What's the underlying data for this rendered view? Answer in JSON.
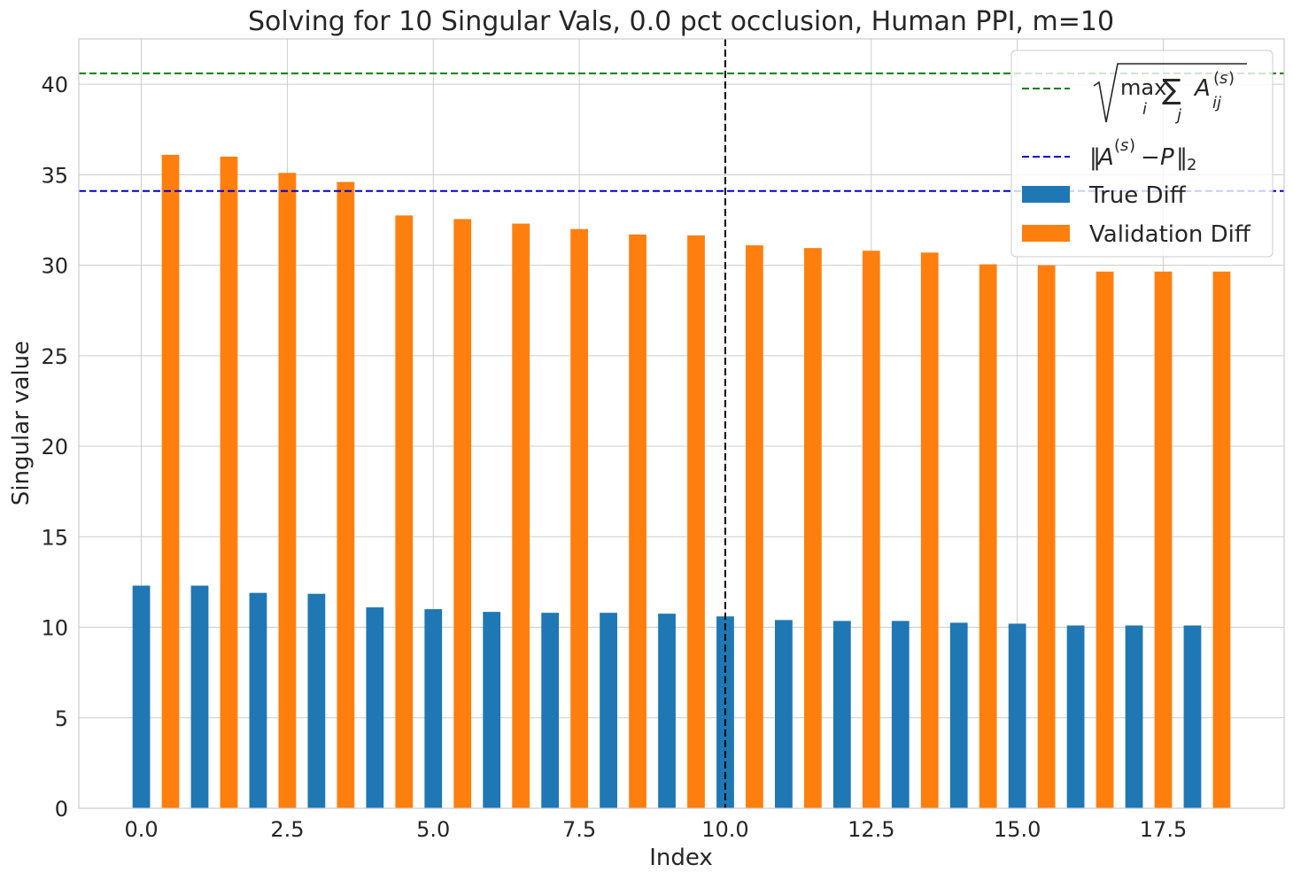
{
  "chart_data": {
    "type": "bar",
    "title": "Solving for 10 Singular Vals, 0.0 pct occlusion, Human PPI, m=10",
    "xlabel": "Index",
    "ylabel": "Singular value",
    "xlim": [
      -1.07,
      19.57
    ],
    "ylim": [
      0,
      42.5
    ],
    "xticks": [
      0,
      2.5,
      5,
      7.5,
      10,
      12.5,
      15,
      17.5
    ],
    "xtick_labels": [
      "0.0",
      "2.5",
      "5.0",
      "7.5",
      "10.0",
      "12.5",
      "15.0",
      "17.5"
    ],
    "yticks": [
      0,
      5,
      10,
      15,
      20,
      25,
      30,
      35,
      40
    ],
    "ytick_labels": [
      "0",
      "5",
      "10",
      "15",
      "20",
      "25",
      "30",
      "35",
      "40"
    ],
    "grid": true,
    "bar_width": 0.3,
    "series": [
      {
        "name": "True Diff",
        "color": "#1f77b4",
        "x": [
          0,
          1,
          2,
          3,
          4,
          5,
          6,
          7,
          8,
          9,
          10,
          11,
          12,
          13,
          14,
          15,
          16,
          17,
          18
        ],
        "values": [
          12.3,
          12.3,
          11.9,
          11.85,
          11.1,
          11.0,
          10.85,
          10.8,
          10.8,
          10.75,
          10.6,
          10.4,
          10.35,
          10.35,
          10.25,
          10.2,
          10.1,
          10.1,
          10.1
        ]
      },
      {
        "name": "Validation Diff",
        "color": "#ff7f0e",
        "x": [
          0.5,
          1.5,
          2.5,
          3.5,
          4.5,
          5.5,
          6.5,
          7.5,
          8.5,
          9.5,
          10.5,
          11.5,
          12.5,
          13.5,
          14.5,
          15.5,
          16.5,
          17.5,
          18.5
        ],
        "values": [
          36.1,
          36.0,
          35.1,
          34.6,
          32.75,
          32.55,
          32.3,
          32.0,
          31.7,
          31.65,
          31.1,
          30.95,
          30.8,
          30.7,
          30.05,
          30.0,
          29.65,
          29.65,
          29.65
        ]
      }
    ],
    "hlines": [
      {
        "label": "sqrt-max-row-sum",
        "y": 40.6,
        "color": "#008000",
        "style": "dashed"
      },
      {
        "label": "spectral-norm-diff",
        "y": 34.1,
        "color": "#0000cc",
        "style": "dashed"
      }
    ],
    "vlines": [
      {
        "x": 10,
        "color": "#000000",
        "style": "dashed"
      }
    ],
    "legend": {
      "placement": "top-right",
      "entries": [
        {
          "kind": "line",
          "color": "#008000",
          "math": "sqrt(max_i sum_j A_ij^(s))"
        },
        {
          "kind": "line",
          "color": "#0000cc",
          "math": "||A^(s) - P||_2"
        },
        {
          "kind": "bar",
          "color": "#1f77b4",
          "label": "True Diff"
        },
        {
          "kind": "bar",
          "color": "#ff7f0e",
          "label": "Validation Diff"
        }
      ]
    }
  }
}
